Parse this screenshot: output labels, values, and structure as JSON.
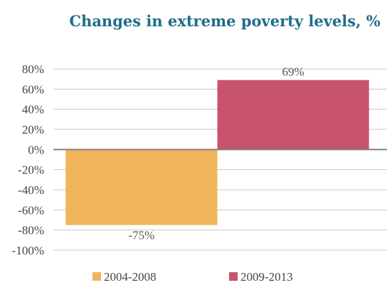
{
  "chart_data": {
    "type": "bar",
    "title": "Changes in extreme poverty levels, %",
    "xlabel": "",
    "ylabel": "",
    "ylim": [
      -100,
      80
    ],
    "yticks": [
      80,
      60,
      40,
      20,
      0,
      -20,
      -40,
      -60,
      -80,
      -100
    ],
    "ytick_labels": [
      "80%",
      "60%",
      "40%",
      "20%",
      "0%",
      "-20%",
      "-40%",
      "-60%",
      "-80%",
      "-100%"
    ],
    "grid": true,
    "legend_position": "bottom",
    "series": [
      {
        "name": "2004-2008",
        "value": -75,
        "label": "-75%",
        "color": "#f0b45a"
      },
      {
        "name": "2009-2013",
        "value": 69,
        "label": "69%",
        "color": "#c8546b"
      }
    ]
  }
}
